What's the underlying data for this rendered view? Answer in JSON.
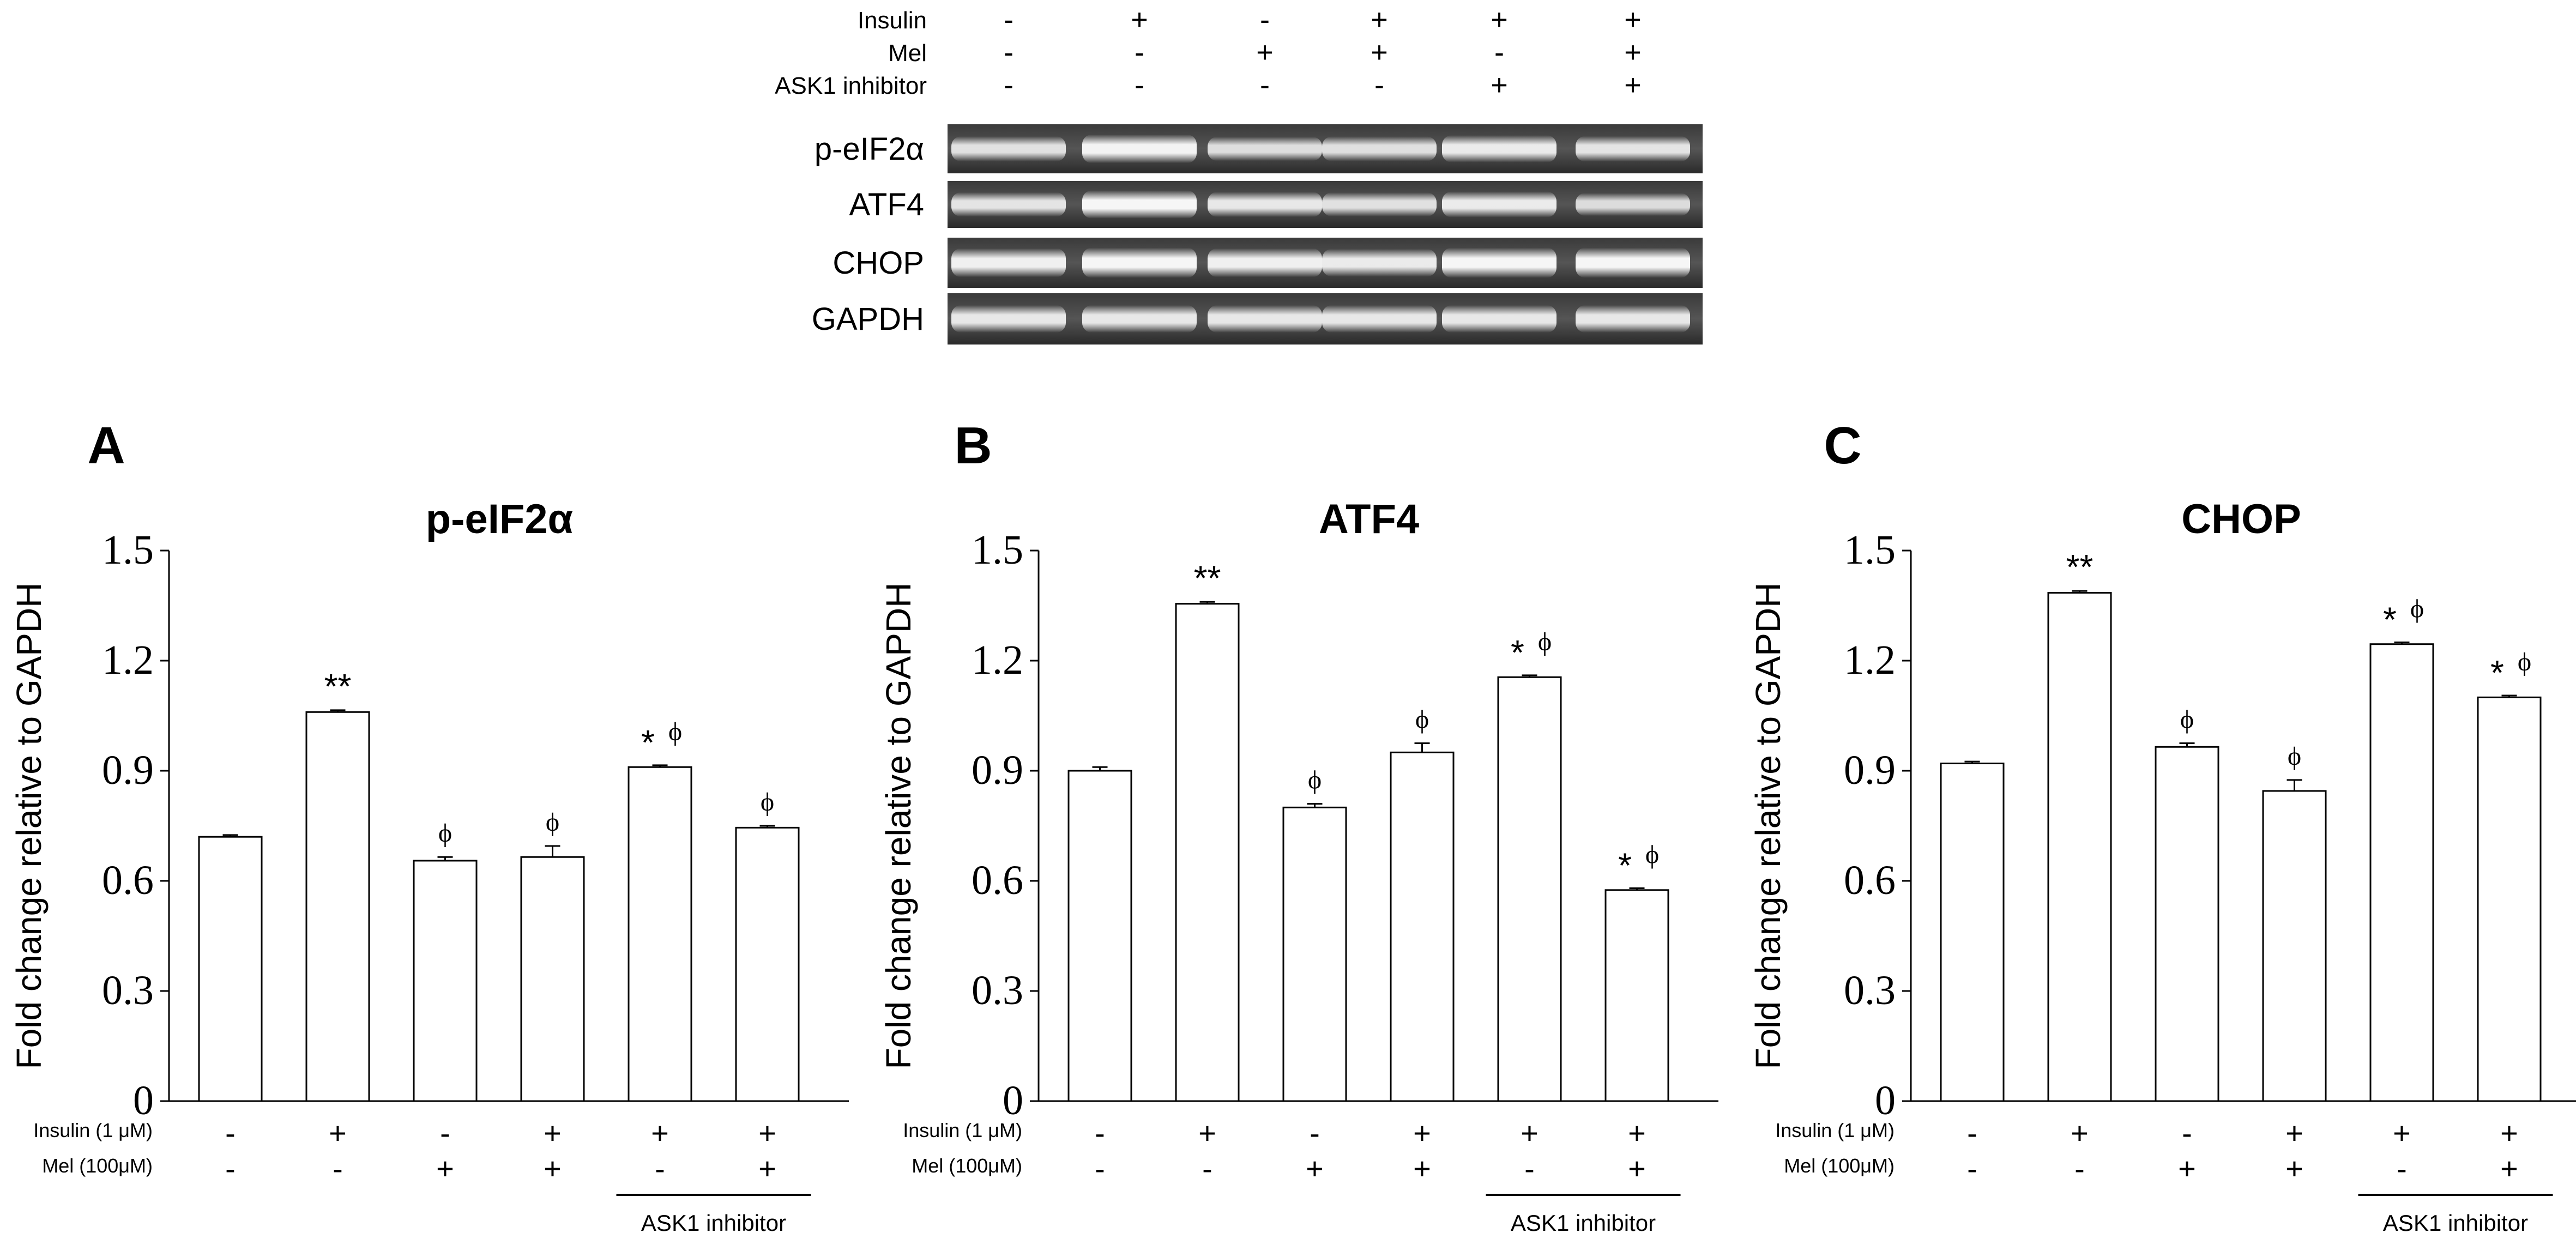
{
  "blot": {
    "conditions": [
      {
        "label": "Insulin",
        "values": [
          "-",
          "+",
          "-",
          "+",
          "+",
          "+"
        ]
      },
      {
        "label": "Mel",
        "values": [
          "-",
          "-",
          "+",
          "+",
          "-",
          "+"
        ]
      },
      {
        "label": "ASK1 inhibitor",
        "values": [
          "-",
          "-",
          "-",
          "-",
          "+",
          "+"
        ]
      }
    ],
    "rows": [
      {
        "label": "p-eIF2α",
        "band_intensity": [
          0.72,
          0.95,
          0.66,
          0.7,
          0.85,
          0.75
        ]
      },
      {
        "label": "ATF4",
        "band_intensity": [
          0.75,
          1.0,
          0.8,
          0.72,
          0.85,
          0.65
        ]
      },
      {
        "label": "CHOP",
        "band_intensity": [
          0.92,
          1.0,
          0.92,
          0.85,
          1.0,
          1.0
        ]
      },
      {
        "label": "GAPDH",
        "band_intensity": [
          0.8,
          0.8,
          0.8,
          0.8,
          0.8,
          0.8
        ]
      }
    ]
  },
  "chart_data": [
    {
      "type": "bar",
      "panel": "A",
      "title": "p-eIF2α",
      "ylabel": "Fold change relative to GAPDH",
      "ylim": [
        0,
        1.5
      ],
      "yticks": [
        "0",
        "0.3",
        "0.6",
        "0.9",
        "1.2",
        "1.5"
      ],
      "values": [
        0.72,
        1.06,
        0.655,
        0.665,
        0.91,
        0.745
      ],
      "errors": [
        0.005,
        0.005,
        0.01,
        0.03,
        0.005,
        0.005
      ],
      "annotations": [
        {
          "star": "",
          "phi": ""
        },
        {
          "star": "**",
          "phi": ""
        },
        {
          "star": "",
          "phi": "ϕ"
        },
        {
          "star": "",
          "phi": "ϕ"
        },
        {
          "star": "*",
          "phi": "ϕ"
        },
        {
          "star": "",
          "phi": "ϕ"
        }
      ],
      "conditions": [
        {
          "label": "Insulin (1 μM)",
          "values": [
            "-",
            "+",
            "-",
            "+",
            "+",
            "+"
          ]
        },
        {
          "label": "Mel (100μM)",
          "values": [
            "-",
            "-",
            "+",
            "+",
            "-",
            "+"
          ]
        }
      ],
      "group_label": "ASK1 inhibitor"
    },
    {
      "type": "bar",
      "panel": "B",
      "title": "ATF4",
      "ylabel": "Fold change relative to GAPDH",
      "ylim": [
        0,
        1.5
      ],
      "yticks": [
        "0",
        "0.3",
        "0.6",
        "0.9",
        "1.2",
        "1.5"
      ],
      "values": [
        0.9,
        1.355,
        0.8,
        0.95,
        1.155,
        0.575
      ],
      "errors": [
        0.01,
        0.005,
        0.01,
        0.025,
        0.005,
        0.005
      ],
      "annotations": [
        {
          "star": "",
          "phi": ""
        },
        {
          "star": "**",
          "phi": ""
        },
        {
          "star": "",
          "phi": "ϕ"
        },
        {
          "star": "",
          "phi": "ϕ"
        },
        {
          "star": "*",
          "phi": "ϕ"
        },
        {
          "star": "*",
          "phi": "ϕ"
        }
      ],
      "conditions": [
        {
          "label": "Insulin (1 μM)",
          "values": [
            "-",
            "+",
            "-",
            "+",
            "+",
            "+"
          ]
        },
        {
          "label": "Mel (100μM)",
          "values": [
            "-",
            "-",
            "+",
            "+",
            "-",
            "+"
          ]
        }
      ],
      "group_label": "ASK1 inhibitor"
    },
    {
      "type": "bar",
      "panel": "C",
      "title": "CHOP",
      "ylabel": "Fold change relative to GAPDH",
      "ylim": [
        0,
        1.5
      ],
      "yticks": [
        "0",
        "0.3",
        "0.6",
        "0.9",
        "1.2",
        "1.5"
      ],
      "values": [
        0.92,
        1.385,
        0.965,
        0.845,
        1.245,
        1.1
      ],
      "errors": [
        0.005,
        0.005,
        0.01,
        0.03,
        0.005,
        0.005
      ],
      "annotations": [
        {
          "star": "",
          "phi": ""
        },
        {
          "star": "**",
          "phi": ""
        },
        {
          "star": "",
          "phi": "ϕ"
        },
        {
          "star": "",
          "phi": "ϕ"
        },
        {
          "star": "*",
          "phi": "ϕ"
        },
        {
          "star": "*",
          "phi": "ϕ"
        }
      ],
      "conditions": [
        {
          "label": "Insulin (1 μM)",
          "values": [
            "-",
            "+",
            "-",
            "+",
            "+",
            "+"
          ]
        },
        {
          "label": "Mel (100μM)",
          "values": [
            "-",
            "-",
            "+",
            "+",
            "-",
            "+"
          ]
        }
      ],
      "group_label": "ASK1 inhibitor"
    }
  ]
}
